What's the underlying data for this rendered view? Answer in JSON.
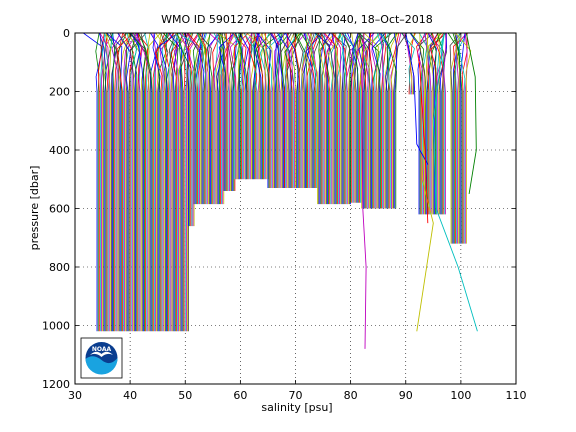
{
  "chart_data": {
    "type": "line",
    "title": "WMO ID 5901278, internal ID 2040, 18–Oct–2018",
    "xlabel": "salinity [psu]",
    "ylabel": "pressure [dbar]",
    "xlim": [
      30,
      110
    ],
    "ylim": [
      0,
      1200
    ],
    "y_reversed": true,
    "x_ticks": [
      30,
      40,
      50,
      60,
      70,
      80,
      90,
      100,
      110
    ],
    "y_ticks": [
      0,
      200,
      400,
      600,
      800,
      1000,
      1200
    ],
    "grid": true,
    "legend": "none",
    "logo": "NOAA",
    "profile_colors": [
      "#0000ff",
      "#008000",
      "#ff0000",
      "#00bfbf",
      "#bf00bf",
      "#bfbf00",
      "#404040"
    ],
    "series": [
      {
        "x_start": 34.0,
        "x_end": 50.6,
        "spacing": 0.2,
        "max_pressure": 1020
      },
      {
        "x_start": 50.6,
        "x_end": 51.6,
        "spacing": 0.2,
        "max_pressure": 660
      },
      {
        "x_start": 51.6,
        "x_end": 57.0,
        "spacing": 0.2,
        "max_pressure": 585
      },
      {
        "x_start": 57.0,
        "x_end": 59.0,
        "spacing": 0.2,
        "max_pressure": 540
      },
      {
        "x_start": 59.0,
        "x_end": 61.0,
        "spacing": 0.2,
        "max_pressure": 500
      },
      {
        "x_start": 61.0,
        "x_end": 65.0,
        "spacing": 0.2,
        "max_pressure": 500
      },
      {
        "x_start": 65.0,
        "x_end": 68.0,
        "spacing": 0.2,
        "max_pressure": 530
      },
      {
        "x_start": 68.0,
        "x_end": 74.0,
        "spacing": 0.2,
        "max_pressure": 530
      },
      {
        "x_start": 74.0,
        "x_end": 80.0,
        "spacing": 0.2,
        "max_pressure": 585
      },
      {
        "x_start": 80.0,
        "x_end": 82.0,
        "spacing": 0.2,
        "max_pressure": 580
      },
      {
        "x_start": 82.0,
        "x_end": 88.2,
        "spacing": 0.2,
        "max_pressure": 600
      },
      {
        "x_start": 90.6,
        "x_end": 91.4,
        "spacing": 0.2,
        "max_pressure": 210
      },
      {
        "x_start": 92.4,
        "x_end": 95.6,
        "spacing": 0.2,
        "max_pressure": 620
      },
      {
        "x_start": 95.6,
        "x_end": 97.2,
        "spacing": 0.2,
        "max_pressure": 620
      },
      {
        "x_start": 98.2,
        "x_end": 101.0,
        "spacing": 0.2,
        "max_pressure": 720
      }
    ],
    "outliers": [
      {
        "color": "#bf00bf",
        "points": [
          [
            82.4,
            0
          ],
          [
            82.0,
            300
          ],
          [
            82.2,
            600
          ],
          [
            82.8,
            800
          ],
          [
            82.6,
            1080
          ]
        ]
      },
      {
        "color": "#bfbf00",
        "points": [
          [
            94.0,
            0
          ],
          [
            93.0,
            500
          ],
          [
            95.0,
            650
          ],
          [
            92.0,
            1020
          ]
        ]
      },
      {
        "color": "#00bfbf",
        "points": [
          [
            97.0,
            0
          ],
          [
            95.0,
            300
          ],
          [
            95.5,
            600
          ],
          [
            99.5,
            800
          ],
          [
            103.0,
            1020
          ]
        ]
      },
      {
        "color": "#008000",
        "points": [
          [
            101.0,
            0
          ],
          [
            102.6,
            150
          ],
          [
            102.8,
            400
          ],
          [
            101.5,
            550
          ]
        ]
      },
      {
        "color": "#0000ff",
        "points": [
          [
            90.0,
            0
          ],
          [
            91.5,
            150
          ],
          [
            92.0,
            380
          ],
          [
            94.0,
            450
          ]
        ]
      },
      {
        "color": "#ff0000",
        "points": [
          [
            92.5,
            100
          ],
          [
            93.5,
            400
          ],
          [
            94.0,
            650
          ]
        ]
      }
    ]
  }
}
